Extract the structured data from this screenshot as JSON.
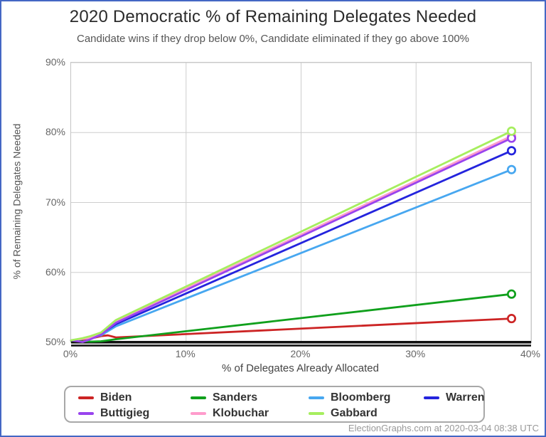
{
  "window": {
    "border_color": "#4467c4",
    "background": "#ffffff"
  },
  "header": {
    "title": "2020 Democratic % of Remaining Delegates Needed",
    "subtitle": "Candidate wins if they drop below 0%, Candidate eliminated if they go above 100%"
  },
  "footer": {
    "credit": "ElectionGraphs.com at 2020-03-04 08:38 UTC"
  },
  "chart_data": {
    "type": "line",
    "title": "2020 Democratic % of Remaining Delegates Needed",
    "subtitle": "Candidate wins if they drop below 0%, Candidate eliminated if they go above 100%",
    "xlabel": "% of Delegates Already Allocated",
    "ylabel": "% of Remaining Delegates Needed",
    "xlim": [
      0,
      40
    ],
    "ylim": [
      50,
      90
    ],
    "grid": true,
    "gridline_color": "#cdcdcd",
    "legend_position": "bottom",
    "threshold_line": {
      "y": 50,
      "color": "#111111",
      "style": "double-thick"
    },
    "xticks": [
      {
        "value": 0,
        "label": "0%"
      },
      {
        "value": 10,
        "label": "10%"
      },
      {
        "value": 20,
        "label": "20%"
      },
      {
        "value": 30,
        "label": "30%"
      },
      {
        "value": 40,
        "label": "40%"
      }
    ],
    "yticks": [
      {
        "value": 50,
        "label": "50%"
      },
      {
        "value": 60,
        "label": "60%"
      },
      {
        "value": 70,
        "label": "70%"
      },
      {
        "value": 80,
        "label": "80%"
      },
      {
        "value": 90,
        "label": "90%"
      }
    ],
    "draw_order": [
      "Biden",
      "Sanders",
      "Bloomberg",
      "Warren",
      "Klobuchar",
      "Buttigieg",
      "Gabbard"
    ],
    "series": [
      {
        "name": "Biden",
        "color": "#cc2424",
        "points": [
          [
            0,
            50.25
          ],
          [
            1,
            50.4
          ],
          [
            1.7,
            50.55
          ],
          [
            2.6,
            50.9
          ],
          [
            3.2,
            51.0
          ],
          [
            3.9,
            50.7
          ],
          [
            38.3,
            53.4
          ]
        ],
        "endpoint_marker": "open-circle",
        "end_value": 53.4
      },
      {
        "name": "Sanders",
        "color": "#10a01c",
        "points": [
          [
            0,
            50.25
          ],
          [
            1,
            50.15
          ],
          [
            1.7,
            50.1
          ],
          [
            2.6,
            50.15
          ],
          [
            3.9,
            50.45
          ],
          [
            38.3,
            56.9
          ]
        ],
        "endpoint_marker": "open-circle",
        "end_value": 56.9
      },
      {
        "name": "Bloomberg",
        "color": "#47a7f0",
        "points": [
          [
            0,
            50.3
          ],
          [
            1,
            50.5
          ],
          [
            1.7,
            50.7
          ],
          [
            2.6,
            51.0
          ],
          [
            3.9,
            52.3
          ],
          [
            38.3,
            74.7
          ]
        ],
        "endpoint_marker": "open-circle",
        "end_value": 74.7
      },
      {
        "name": "Warren",
        "color": "#2424dd",
        "points": [
          [
            0,
            50.3
          ],
          [
            1,
            50.55
          ],
          [
            1.7,
            50.8
          ],
          [
            2.6,
            51.2
          ],
          [
            3.9,
            52.6
          ],
          [
            38.3,
            77.4
          ]
        ],
        "endpoint_marker": "open-circle",
        "end_value": 77.4
      },
      {
        "name": "Buttigieg",
        "color": "#9944ee",
        "points": [
          [
            0,
            50.3
          ],
          [
            1,
            50.05
          ],
          [
            1.7,
            50.45
          ],
          [
            2.6,
            51.1
          ],
          [
            3.9,
            52.8
          ],
          [
            38.3,
            79.2
          ]
        ],
        "endpoint_marker": "open-circle",
        "end_value": 79.2
      },
      {
        "name": "Klobuchar",
        "color": "#ff9ccc",
        "points": [
          [
            0,
            50.3
          ],
          [
            1,
            50.5
          ],
          [
            1.7,
            50.65
          ],
          [
            2.6,
            51.3
          ],
          [
            3.9,
            53.0
          ],
          [
            38.3,
            79.5
          ]
        ],
        "endpoint_marker": "open-circle",
        "end_value": 79.5
      },
      {
        "name": "Gabbard",
        "color": "#a6ee5e",
        "points": [
          [
            0,
            50.3
          ],
          [
            1,
            50.6
          ],
          [
            1.7,
            50.9
          ],
          [
            2.6,
            51.4
          ],
          [
            3.9,
            53.2
          ],
          [
            38.3,
            80.2
          ]
        ],
        "endpoint_marker": "open-circle",
        "end_value": 80.2
      }
    ]
  },
  "legend": {
    "order": [
      "Biden",
      "Sanders",
      "Bloomberg",
      "Warren",
      "Buttigieg",
      "Klobuchar",
      "Gabbard"
    ]
  }
}
